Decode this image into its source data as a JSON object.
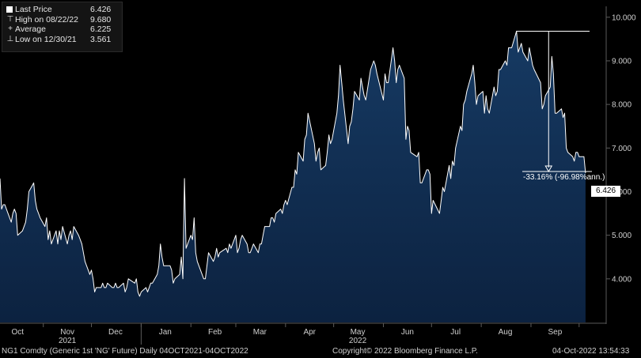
{
  "legend": {
    "items": [
      {
        "label": "Last Price",
        "value": "6.426"
      },
      {
        "label": "High on 08/22/22",
        "value": "9.680"
      },
      {
        "label": "Average",
        "value": "6.225"
      },
      {
        "label": "Low on 12/30/21",
        "value": "3.561"
      }
    ]
  },
  "annotation": {
    "text": "-33.16% (-96.98%ann.)"
  },
  "last_price_tag": "6.426",
  "footer": {
    "left": "NG1 Comdty (Generic 1st 'NG' Future)  Daily 04OCT2021-04OCT2022",
    "center": "Copyright© 2022 Bloomberg Finance L.P.",
    "right": "04-Oct-2022 13:54:33"
  },
  "colors": {
    "background": "#000000",
    "line": "#ffffff",
    "fill_top": "#163a63",
    "fill_bottom": "#0c2240",
    "axis_text": "#cfcfcf",
    "grid": "#5a5a5a"
  },
  "chart_data": {
    "type": "area",
    "title": "",
    "xlabel": "",
    "ylabel": "",
    "ylim": [
      3.0,
      10.25
    ],
    "yticks": [
      "4.000",
      "5.000",
      "6.000",
      "7.000",
      "8.000",
      "9.000",
      "10.000"
    ],
    "months": [
      {
        "label": "Oct",
        "date": "2021-10-15"
      },
      {
        "label": "Nov",
        "date": "2021-11-15"
      },
      {
        "label": "Dec",
        "date": "2021-12-15"
      },
      {
        "label": "Jan",
        "date": "2022-01-15"
      },
      {
        "label": "Feb",
        "date": "2022-02-15"
      },
      {
        "label": "Mar",
        "date": "2022-03-15"
      },
      {
        "label": "Apr",
        "date": "2022-04-15"
      },
      {
        "label": "May",
        "date": "2022-05-15"
      },
      {
        "label": "Jun",
        "date": "2022-06-15"
      },
      {
        "label": "Jul",
        "date": "2022-07-15"
      },
      {
        "label": "Aug",
        "date": "2022-08-15"
      },
      {
        "label": "Sep",
        "date": "2022-09-15"
      }
    ],
    "years": [
      {
        "label": "2021",
        "date": "2021-11-15"
      },
      {
        "label": "2022",
        "date": "2022-05-15"
      }
    ],
    "xlim": [
      "2021-10-04",
      "2022-10-08"
    ],
    "series": [
      {
        "values": [
          [
            "2021-10-04",
            6.3
          ],
          [
            "2021-10-05",
            5.6
          ],
          [
            "2021-10-06",
            5.7
          ],
          [
            "2021-10-07",
            5.7
          ],
          [
            "2021-10-08",
            5.6
          ],
          [
            "2021-10-11",
            5.3
          ],
          [
            "2021-10-12",
            5.5
          ],
          [
            "2021-10-13",
            5.6
          ],
          [
            "2021-10-14",
            5.5
          ],
          [
            "2021-10-15",
            5.0
          ],
          [
            "2021-10-18",
            5.1
          ],
          [
            "2021-10-19",
            5.2
          ],
          [
            "2021-10-20",
            5.3
          ],
          [
            "2021-10-21",
            5.6
          ],
          [
            "2021-10-22",
            6.0
          ],
          [
            "2021-10-25",
            6.2
          ],
          [
            "2021-10-26",
            5.8
          ],
          [
            "2021-10-27",
            5.6
          ],
          [
            "2021-10-28",
            5.5
          ],
          [
            "2021-10-29",
            5.4
          ],
          [
            "2021-11-01",
            5.2
          ],
          [
            "2021-11-02",
            5.4
          ],
          [
            "2021-11-03",
            4.9
          ],
          [
            "2021-11-04",
            5.1
          ],
          [
            "2021-11-05",
            4.8
          ],
          [
            "2021-11-08",
            5.1
          ],
          [
            "2021-11-09",
            4.8
          ],
          [
            "2021-11-10",
            5.1
          ],
          [
            "2021-11-11",
            4.9
          ],
          [
            "2021-11-12",
            5.2
          ],
          [
            "2021-11-15",
            4.8
          ],
          [
            "2021-11-16",
            5.0
          ],
          [
            "2021-11-17",
            5.1
          ],
          [
            "2021-11-18",
            4.9
          ],
          [
            "2021-11-19",
            5.2
          ],
          [
            "2021-11-22",
            5.0
          ],
          [
            "2021-11-23",
            4.9
          ],
          [
            "2021-11-24",
            4.8
          ],
          [
            "2021-11-26",
            4.4
          ],
          [
            "2021-11-29",
            4.1
          ],
          [
            "2021-11-30",
            4.2
          ],
          [
            "2021-12-01",
            4.0
          ],
          [
            "2021-12-02",
            3.7
          ],
          [
            "2021-12-03",
            3.8
          ],
          [
            "2021-12-06",
            3.8
          ],
          [
            "2021-12-07",
            3.9
          ],
          [
            "2021-12-08",
            3.8
          ],
          [
            "2021-12-09",
            3.8
          ],
          [
            "2021-12-10",
            3.9
          ],
          [
            "2021-12-13",
            3.8
          ],
          [
            "2021-12-14",
            3.8
          ],
          [
            "2021-12-15",
            3.9
          ],
          [
            "2021-12-16",
            3.8
          ],
          [
            "2021-12-17",
            3.8
          ],
          [
            "2021-12-20",
            3.9
          ],
          [
            "2021-12-21",
            3.7
          ],
          [
            "2021-12-22",
            3.8
          ],
          [
            "2021-12-23",
            4.0
          ],
          [
            "2021-12-27",
            3.9
          ],
          [
            "2021-12-28",
            4.0
          ],
          [
            "2021-12-29",
            3.7
          ],
          [
            "2021-12-30",
            3.6
          ],
          [
            "2021-12-31",
            3.7
          ],
          [
            "2022-01-03",
            3.8
          ],
          [
            "2022-01-04",
            3.7
          ],
          [
            "2022-01-05",
            3.8
          ],
          [
            "2022-01-06",
            3.9
          ],
          [
            "2022-01-07",
            3.9
          ],
          [
            "2022-01-10",
            4.1
          ],
          [
            "2022-01-11",
            4.3
          ],
          [
            "2022-01-12",
            4.8
          ],
          [
            "2022-01-13",
            4.5
          ],
          [
            "2022-01-14",
            4.3
          ],
          [
            "2022-01-18",
            4.3
          ],
          [
            "2022-01-19",
            4.2
          ],
          [
            "2022-01-20",
            3.9
          ],
          [
            "2022-01-21",
            4.0
          ],
          [
            "2022-01-24",
            4.1
          ],
          [
            "2022-01-25",
            4.5
          ],
          [
            "2022-01-26",
            4.0
          ],
          [
            "2022-01-27",
            6.3
          ],
          [
            "2022-01-28",
            4.7
          ],
          [
            "2022-01-31",
            5.0
          ],
          [
            "2022-02-01",
            4.9
          ],
          [
            "2022-02-02",
            5.4
          ],
          [
            "2022-02-03",
            4.6
          ],
          [
            "2022-02-04",
            4.4
          ],
          [
            "2022-02-07",
            4.1
          ],
          [
            "2022-02-08",
            4.0
          ],
          [
            "2022-02-09",
            4.0
          ],
          [
            "2022-02-10",
            4.3
          ],
          [
            "2022-02-11",
            4.6
          ],
          [
            "2022-02-14",
            4.4
          ],
          [
            "2022-02-15",
            4.5
          ],
          [
            "2022-02-16",
            4.7
          ],
          [
            "2022-02-17",
            4.5
          ],
          [
            "2022-02-18",
            4.6
          ],
          [
            "2022-02-22",
            4.7
          ],
          [
            "2022-02-23",
            4.6
          ],
          [
            "2022-02-24",
            4.8
          ],
          [
            "2022-02-25",
            4.7
          ],
          [
            "2022-02-28",
            5.0
          ],
          [
            "2022-03-01",
            4.6
          ],
          [
            "2022-03-02",
            4.7
          ],
          [
            "2022-03-03",
            4.9
          ],
          [
            "2022-03-04",
            5.0
          ],
          [
            "2022-03-07",
            4.8
          ],
          [
            "2022-03-08",
            4.6
          ],
          [
            "2022-03-09",
            4.6
          ],
          [
            "2022-03-10",
            4.7
          ],
          [
            "2022-03-11",
            4.8
          ],
          [
            "2022-03-14",
            4.6
          ],
          [
            "2022-03-15",
            4.8
          ],
          [
            "2022-03-16",
            4.8
          ],
          [
            "2022-03-17",
            5.0
          ],
          [
            "2022-03-18",
            5.2
          ],
          [
            "2022-03-21",
            5.2
          ],
          [
            "2022-03-22",
            5.4
          ],
          [
            "2022-03-23",
            5.4
          ],
          [
            "2022-03-24",
            5.3
          ],
          [
            "2022-03-25",
            5.5
          ],
          [
            "2022-03-28",
            5.6
          ],
          [
            "2022-03-29",
            5.5
          ],
          [
            "2022-03-30",
            5.7
          ],
          [
            "2022-03-31",
            5.8
          ],
          [
            "2022-04-01",
            5.7
          ],
          [
            "2022-04-04",
            6.1
          ],
          [
            "2022-04-05",
            6.1
          ],
          [
            "2022-04-06",
            6.5
          ],
          [
            "2022-04-07",
            6.4
          ],
          [
            "2022-04-08",
            6.9
          ],
          [
            "2022-04-11",
            6.7
          ],
          [
            "2022-04-12",
            7.2
          ],
          [
            "2022-04-13",
            7.3
          ],
          [
            "2022-04-14",
            7.8
          ],
          [
            "2022-04-18",
            7.1
          ],
          [
            "2022-04-19",
            6.7
          ],
          [
            "2022-04-20",
            6.9
          ],
          [
            "2022-04-21",
            7.0
          ],
          [
            "2022-04-22",
            6.5
          ],
          [
            "2022-04-25",
            6.6
          ],
          [
            "2022-04-26",
            6.9
          ],
          [
            "2022-04-27",
            7.3
          ],
          [
            "2022-04-28",
            7.1
          ],
          [
            "2022-04-29",
            7.2
          ],
          [
            "2022-05-02",
            7.8
          ],
          [
            "2022-05-03",
            8.2
          ],
          [
            "2022-05-04",
            8.9
          ],
          [
            "2022-05-05",
            8.5
          ],
          [
            "2022-05-06",
            8.1
          ],
          [
            "2022-05-09",
            7.1
          ],
          [
            "2022-05-10",
            7.5
          ],
          [
            "2022-05-11",
            7.6
          ],
          [
            "2022-05-12",
            7.9
          ],
          [
            "2022-05-13",
            8.3
          ],
          [
            "2022-05-16",
            8.1
          ],
          [
            "2022-05-17",
            8.6
          ],
          [
            "2022-05-18",
            8.4
          ],
          [
            "2022-05-19",
            8.2
          ],
          [
            "2022-05-20",
            8.1
          ],
          [
            "2022-05-23",
            8.8
          ],
          [
            "2022-05-24",
            8.9
          ],
          [
            "2022-05-25",
            9.0
          ],
          [
            "2022-05-26",
            8.9
          ],
          [
            "2022-05-27",
            8.7
          ],
          [
            "2022-05-31",
            8.1
          ],
          [
            "2022-06-01",
            8.7
          ],
          [
            "2022-06-02",
            8.5
          ],
          [
            "2022-06-03",
            8.5
          ],
          [
            "2022-06-06",
            9.3
          ],
          [
            "2022-06-07",
            9.0
          ],
          [
            "2022-06-08",
            8.5
          ],
          [
            "2022-06-09",
            8.8
          ],
          [
            "2022-06-10",
            8.9
          ],
          [
            "2022-06-13",
            8.6
          ],
          [
            "2022-06-14",
            7.2
          ],
          [
            "2022-06-15",
            7.5
          ],
          [
            "2022-06-16",
            7.4
          ],
          [
            "2022-06-17",
            6.9
          ],
          [
            "2022-06-21",
            6.8
          ],
          [
            "2022-06-22",
            6.9
          ],
          [
            "2022-06-23",
            6.2
          ],
          [
            "2022-06-24",
            6.2
          ],
          [
            "2022-06-27",
            6.5
          ],
          [
            "2022-06-28",
            6.5
          ],
          [
            "2022-06-29",
            6.4
          ],
          [
            "2022-06-30",
            5.5
          ],
          [
            "2022-07-01",
            5.8
          ],
          [
            "2022-07-05",
            5.5
          ],
          [
            "2022-07-06",
            5.8
          ],
          [
            "2022-07-07",
            6.1
          ],
          [
            "2022-07-08",
            6.0
          ],
          [
            "2022-07-11",
            6.6
          ],
          [
            "2022-07-12",
            6.3
          ],
          [
            "2022-07-13",
            6.7
          ],
          [
            "2022-07-14",
            6.6
          ],
          [
            "2022-07-15",
            7.0
          ],
          [
            "2022-07-18",
            7.5
          ],
          [
            "2022-07-19",
            7.4
          ],
          [
            "2022-07-20",
            8.0
          ],
          [
            "2022-07-21",
            8.1
          ],
          [
            "2022-07-22",
            8.3
          ],
          [
            "2022-07-25",
            8.7
          ],
          [
            "2022-07-26",
            8.9
          ],
          [
            "2022-07-27",
            8.5
          ],
          [
            "2022-07-28",
            8.0
          ],
          [
            "2022-07-29",
            8.2
          ],
          [
            "2022-08-01",
            8.3
          ],
          [
            "2022-08-02",
            7.8
          ],
          [
            "2022-08-03",
            8.2
          ],
          [
            "2022-08-04",
            7.9
          ],
          [
            "2022-08-05",
            7.8
          ],
          [
            "2022-08-08",
            8.4
          ],
          [
            "2022-08-09",
            8.2
          ],
          [
            "2022-08-10",
            8.3
          ],
          [
            "2022-08-11",
            8.8
          ],
          [
            "2022-08-12",
            8.8
          ],
          [
            "2022-08-15",
            9.0
          ],
          [
            "2022-08-16",
            8.9
          ],
          [
            "2022-08-17",
            9.3
          ],
          [
            "2022-08-18",
            9.3
          ],
          [
            "2022-08-19",
            9.3
          ],
          [
            "2022-08-22",
            9.68
          ],
          [
            "2022-08-23",
            9.2
          ],
          [
            "2022-08-24",
            9.3
          ],
          [
            "2022-08-25",
            9.4
          ],
          [
            "2022-08-26",
            9.2
          ],
          [
            "2022-08-29",
            9.0
          ],
          [
            "2022-08-30",
            9.3
          ],
          [
            "2022-08-31",
            9.1
          ],
          [
            "2022-09-01",
            8.9
          ],
          [
            "2022-09-02",
            8.8
          ],
          [
            "2022-09-06",
            8.5
          ],
          [
            "2022-09-07",
            7.9
          ],
          [
            "2022-09-08",
            8.0
          ],
          [
            "2022-09-09",
            8.2
          ],
          [
            "2022-09-12",
            8.4
          ],
          [
            "2022-09-13",
            9.1
          ],
          [
            "2022-09-14",
            8.7
          ],
          [
            "2022-09-15",
            7.8
          ],
          [
            "2022-09-16",
            7.8
          ],
          [
            "2022-09-19",
            7.9
          ],
          [
            "2022-09-20",
            7.7
          ],
          [
            "2022-09-21",
            7.8
          ],
          [
            "2022-09-22",
            7.0
          ],
          [
            "2022-09-23",
            6.9
          ],
          [
            "2022-09-26",
            6.8
          ],
          [
            "2022-09-27",
            6.7
          ],
          [
            "2022-09-28",
            6.9
          ],
          [
            "2022-09-29",
            6.9
          ],
          [
            "2022-09-30",
            6.8
          ],
          [
            "2022-10-03",
            6.8
          ],
          [
            "2022-10-04",
            6.426
          ]
        ]
      }
    ],
    "high": {
      "date": "2022-08-22",
      "value": 9.68
    },
    "grid": false,
    "legend_position": "top-left"
  }
}
